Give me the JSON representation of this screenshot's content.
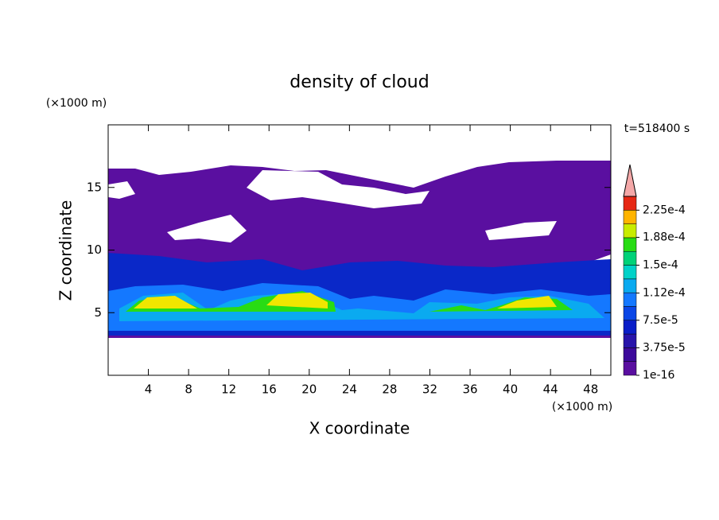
{
  "chart_data": {
    "type": "contour",
    "title": "density of cloud",
    "x_label": "X coordinate",
    "y_label": "Z coordinate",
    "x_unit": "(×1000 m)",
    "y_unit": "(×1000 m)",
    "annotation": "t=518400 s",
    "xlim": [
      0,
      50
    ],
    "xticks": [
      4,
      8,
      12,
      16,
      20,
      24,
      28,
      32,
      36,
      40,
      44,
      48
    ],
    "ylim": [
      0,
      20
    ],
    "yticks": [
      5,
      10,
      15
    ],
    "colorbar": {
      "lim": [
        0,
        0.00024375
      ],
      "colors": [
        "#5a0fa0",
        "#3c0a9b",
        "#2814aa",
        "#0a1ec8",
        "#0a46e6",
        "#1478ff",
        "#0aaaf0",
        "#00d2c8",
        "#00d278",
        "#28dc14",
        "#c8ec00",
        "#ffb400",
        "#e62814"
      ],
      "extend": "max",
      "extend_color": "#f4a8a8",
      "ticks": [
        1e-16,
        {
          "value": 3.75e-05,
          "label": "3.75e-5"
        },
        {
          "value": 7.5e-05,
          "label": "7.5e-5"
        },
        {
          "value": 0.000112,
          "label": "1.12e-4"
        },
        {
          "value": 0.00015,
          "label": "1.5e-4"
        },
        {
          "value": 0.000188,
          "label": "1.88e-4"
        },
        {
          "value": 0.000225,
          "label": "2.25e-4"
        }
      ]
    }
  }
}
